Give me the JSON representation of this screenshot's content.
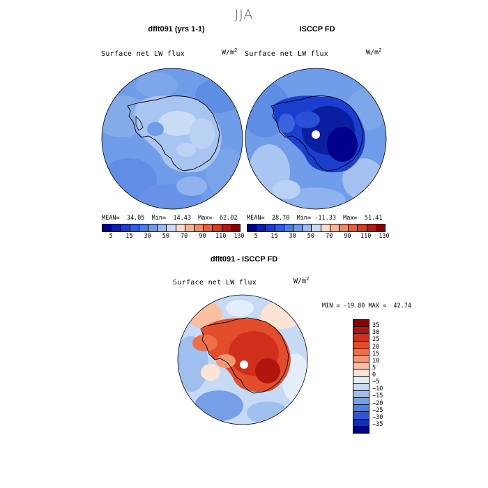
{
  "figure": {
    "season": "JJA"
  },
  "panel_left": {
    "title": "dflt091 (yrs 1-1)",
    "variable": "Surface net LW flux",
    "units_base": "W/m",
    "units_exp": "2",
    "stats": "MEAN=  34.05  Min=  14.43  Max=  62.02"
  },
  "panel_right": {
    "title": "ISCCP FD",
    "variable": "Surface net LW flux",
    "units_base": "W/m",
    "units_exp": "2",
    "stats": "MEAN=  28.70  Min= -11.33  Max=  51.41"
  },
  "panel_diff": {
    "title": "dflt091 - ISCCP FD",
    "variable": "Surface net LW flux",
    "units_base": "W/m",
    "units_exp": "2",
    "stats": "MIN = -19.80 MAX =  42.74"
  },
  "colorbar_abs": {
    "ticks": [
      "5",
      "15",
      "30",
      "50",
      "70",
      "90",
      "110",
      "130"
    ],
    "colors": [
      "#00008b",
      "#0a1fb4",
      "#1a3fd6",
      "#2e5ee6",
      "#4a7de8",
      "#6e9ae8",
      "#9bbbee",
      "#c9dcf4",
      "#f6dccb",
      "#f3b596",
      "#ee8b67",
      "#e5603d",
      "#d63c1f",
      "#b51a10",
      "#8b0000"
    ]
  },
  "colorbar_diff": {
    "ticks": [
      "35",
      "30",
      "25",
      "20",
      "15",
      "10",
      "5",
      "0",
      "−5",
      "−10",
      "−15",
      "−20",
      "−25",
      "−30",
      "−35"
    ],
    "colors": [
      "#8b0000",
      "#b0150e",
      "#d0301b",
      "#e24e2c",
      "#ee7048",
      "#f39672",
      "#f8bfa3",
      "#fbe4d6",
      "#e4eefa",
      "#c6daf5",
      "#9fbfee",
      "#779fe8",
      "#4f7fe2",
      "#2a58d6",
      "#102fb4",
      "#00008b"
    ]
  },
  "map_colors": {
    "ocean_light": "#a9c6f2",
    "ocean_mid": "#7ea7ea",
    "ocean_deep": "#5f8ee4",
    "ice_pale": "#c9dcf6",
    "ice_dark": "#0a1fa0",
    "ice_mid": "#1a3fcf",
    "diff_warm": "#e0492a",
    "diff_hot": "#c42a12",
    "diff_pale": "#f7c3a8",
    "diff_cool": "#c2d6f4"
  }
}
